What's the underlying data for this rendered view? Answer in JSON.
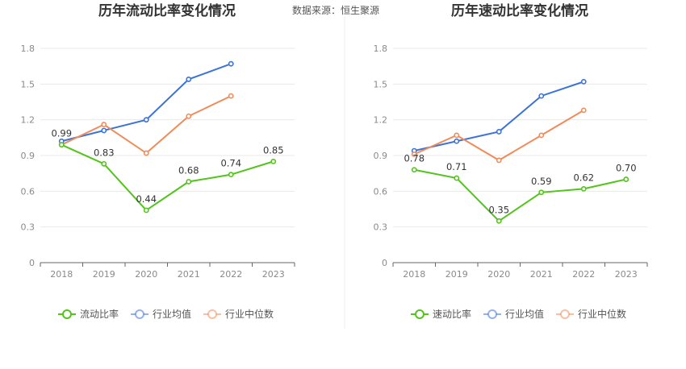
{
  "source": "数据来源：恒生聚源",
  "chart_data": [
    {
      "type": "line",
      "title": "历年流动比率变化情况",
      "categories": [
        "2018",
        "2019",
        "2020",
        "2021",
        "2022",
        "2023"
      ],
      "ylim": [
        0,
        1.8
      ],
      "yticks": [
        "0",
        "0.3",
        "0.6",
        "0.9",
        "1.2",
        "1.5",
        "1.8"
      ],
      "grid": true,
      "legend_position": "bottom",
      "series": [
        {
          "name": "流动比率",
          "color": "#52c41a",
          "values": [
            0.99,
            0.83,
            0.44,
            0.68,
            0.74,
            0.85
          ],
          "labels": [
            "0.99",
            "0.83",
            "0.44",
            "0.68",
            "0.74",
            "0.85"
          ]
        },
        {
          "name": "行业均值",
          "color": "#3b73d9",
          "values": [
            1.02,
            1.11,
            1.2,
            1.54,
            1.67,
            null
          ]
        },
        {
          "name": "行业中位数",
          "color": "#f08c5a",
          "values": [
            0.99,
            1.16,
            0.92,
            1.23,
            1.4,
            null
          ]
        }
      ]
    },
    {
      "type": "line",
      "title": "历年速动比率变化情况",
      "categories": [
        "2018",
        "2019",
        "2020",
        "2021",
        "2022",
        "2023"
      ],
      "ylim": [
        0,
        1.8
      ],
      "yticks": [
        "0",
        "0.3",
        "0.6",
        "0.9",
        "1.2",
        "1.5",
        "1.8"
      ],
      "grid": true,
      "legend_position": "bottom",
      "series": [
        {
          "name": "速动比率",
          "color": "#52c41a",
          "values": [
            0.78,
            0.71,
            0.35,
            0.59,
            0.62,
            0.7
          ],
          "labels": [
            "0.78",
            "0.71",
            "0.35",
            "0.59",
            "0.62",
            "0.70"
          ]
        },
        {
          "name": "行业均值",
          "color": "#3b73d9",
          "values": [
            0.94,
            1.02,
            1.1,
            1.4,
            1.52,
            null
          ]
        },
        {
          "name": "行业中位数",
          "color": "#f08c5a",
          "values": [
            0.91,
            1.07,
            0.86,
            1.07,
            1.28,
            null
          ]
        }
      ]
    }
  ]
}
